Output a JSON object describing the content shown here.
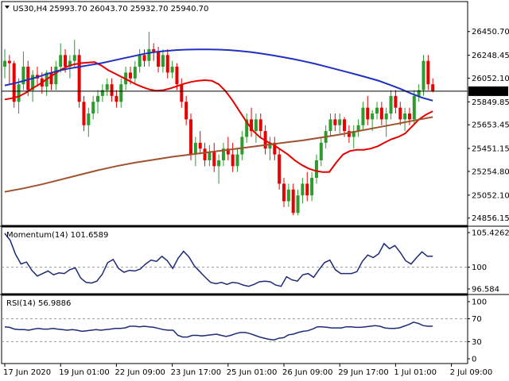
{
  "header": {
    "symbol": "US30,H4",
    "ohlc": "25993.70 26043.70 25932.70 25940.70"
  },
  "colors": {
    "bull": "#2e9b2e",
    "bear": "#e60000",
    "ma_fast": "#e60000",
    "ma_mid": "#2030c0",
    "ma_slow": "#a0522d",
    "indicator": "#1e2a78",
    "price_line": "#000000",
    "price_tag_bg": "#000000",
    "price_tag_text": "#ffffff"
  },
  "chart_data": [
    {
      "type": "candlestick",
      "title": "US30,H4",
      "ohlc_text": "25993.70 26043.70 25932.70 25940.70",
      "ylim": [
        24800,
        26700
      ],
      "y_ticks": [
        "26450.70",
        "26248.45",
        "26052.10",
        "25849.85",
        "25653.45",
        "25451.15",
        "25254.80",
        "25052.10",
        "24856.15"
      ],
      "current_price": "25940.70",
      "x_tick_labels": [
        "17 Jun 2020",
        "19 Jun 01:00",
        "22 Jun 09:00",
        "23 Jun 17:00",
        "25 Jun 01:00",
        "26 Jun 09:00",
        "29 Jun 17:00",
        "1 Jul 01:00",
        "2 Jul 09:00"
      ],
      "x_tick_bar_index": [
        0,
        12,
        24,
        36,
        48,
        60,
        72,
        84,
        96
      ],
      "candles": [
        [
          26150,
          26300,
          26050,
          26200
        ],
        [
          26200,
          26250,
          26000,
          26180
        ],
        [
          26180,
          26200,
          25800,
          25850
        ],
        [
          25850,
          26050,
          25750,
          26000
        ],
        [
          26000,
          26280,
          25950,
          26150
        ],
        [
          26150,
          26200,
          25900,
          25950
        ],
        [
          25950,
          26120,
          25850,
          26080
        ],
        [
          26080,
          26150,
          25980,
          26050
        ],
        [
          26050,
          26100,
          25920,
          25980
        ],
        [
          25980,
          26120,
          25900,
          26100
        ],
        [
          26100,
          26150,
          25950,
          26000
        ],
        [
          26000,
          26200,
          25950,
          26150
        ],
        [
          26150,
          26350,
          26100,
          26250
        ],
        [
          26250,
          26300,
          26100,
          26150
        ],
        [
          26150,
          26250,
          26050,
          26200
        ],
        [
          26200,
          26380,
          26150,
          26250
        ],
        [
          26250,
          26300,
          25800,
          25850
        ],
        [
          25850,
          25900,
          25600,
          25650
        ],
        [
          25650,
          25800,
          25550,
          25750
        ],
        [
          25750,
          25900,
          25700,
          25850
        ],
        [
          25850,
          25950,
          25750,
          25900
        ],
        [
          25900,
          26000,
          25850,
          25950
        ],
        [
          25950,
          26050,
          25900,
          26000
        ],
        [
          26000,
          26050,
          25850,
          25900
        ],
        [
          25900,
          25950,
          25800,
          25850
        ],
        [
          25850,
          26050,
          25800,
          26000
        ],
        [
          26000,
          26150,
          25950,
          26100
        ],
        [
          26100,
          26150,
          26000,
          26050
        ],
        [
          26050,
          26200,
          26000,
          26150
        ],
        [
          26150,
          26300,
          26100,
          26250
        ],
        [
          26250,
          26300,
          26150,
          26200
        ],
        [
          26200,
          26450,
          26150,
          26300
        ],
        [
          26300,
          26350,
          26200,
          26280
        ],
        [
          26280,
          26320,
          26100,
          26150
        ],
        [
          26150,
          26300,
          26100,
          26250
        ],
        [
          26250,
          26300,
          26050,
          26100
        ],
        [
          26100,
          26200,
          26050,
          26150
        ],
        [
          26150,
          26180,
          25950,
          26000
        ],
        [
          26000,
          26050,
          25800,
          25850
        ],
        [
          25850,
          25900,
          25650,
          25700
        ],
        [
          25700,
          25750,
          25350,
          25400
        ],
        [
          25400,
          25550,
          25300,
          25500
        ],
        [
          25500,
          25600,
          25400,
          25450
        ],
        [
          25450,
          25500,
          25300,
          25350
        ],
        [
          25350,
          25480,
          25300,
          25420
        ],
        [
          25420,
          25500,
          25250,
          25300
        ],
        [
          25300,
          25400,
          25150,
          25350
        ],
        [
          25350,
          25500,
          25300,
          25450
        ],
        [
          25450,
          25550,
          25350,
          25400
        ],
        [
          25400,
          25500,
          25250,
          25300
        ],
        [
          25300,
          25450,
          25250,
          25400
        ],
        [
          25400,
          25600,
          25350,
          25550
        ],
        [
          25550,
          25750,
          25500,
          25700
        ],
        [
          25700,
          25800,
          25550,
          25600
        ],
        [
          25600,
          25750,
          25500,
          25700
        ],
        [
          25700,
          25750,
          25550,
          25600
        ],
        [
          25600,
          25650,
          25400,
          25450
        ],
        [
          25450,
          25550,
          25350,
          25500
        ],
        [
          25500,
          25550,
          25350,
          25400
        ],
        [
          25400,
          25450,
          25100,
          25150
        ],
        [
          25150,
          25200,
          24950,
          25000
        ],
        [
          25000,
          25150,
          24950,
          25100
        ],
        [
          25100,
          25150,
          24880,
          24900
        ],
        [
          24900,
          25100,
          24880,
          25050
        ],
        [
          25050,
          25200,
          24980,
          25150
        ],
        [
          25150,
          25250,
          25000,
          25050
        ],
        [
          25050,
          25250,
          25000,
          25200
        ],
        [
          25200,
          25400,
          25150,
          25350
        ],
        [
          25350,
          25550,
          25300,
          25500
        ],
        [
          25500,
          25650,
          25450,
          25600
        ],
        [
          25600,
          25750,
          25550,
          25700
        ],
        [
          25700,
          25750,
          25600,
          25650
        ],
        [
          25650,
          25750,
          25580,
          25700
        ],
        [
          25700,
          25720,
          25550,
          25600
        ],
        [
          25600,
          25650,
          25500,
          25550
        ],
        [
          25550,
          25650,
          25450,
          25600
        ],
        [
          25600,
          25700,
          25550,
          25650
        ],
        [
          25650,
          25850,
          25600,
          25800
        ],
        [
          25800,
          25900,
          25650,
          25700
        ],
        [
          25700,
          25780,
          25600,
          25750
        ],
        [
          25750,
          25850,
          25700,
          25800
        ],
        [
          25800,
          25850,
          25650,
          25700
        ],
        [
          25700,
          25800,
          25550,
          25750
        ],
        [
          25750,
          25950,
          25700,
          25900
        ],
        [
          25900,
          25950,
          25750,
          25800
        ],
        [
          25800,
          25850,
          25650,
          25700
        ],
        [
          25700,
          25800,
          25600,
          25750
        ],
        [
          25750,
          25800,
          25650,
          25700
        ],
        [
          25700,
          25950,
          25650,
          25900
        ],
        [
          25900,
          26000,
          25850,
          25950
        ],
        [
          25950,
          26250,
          25900,
          26200
        ],
        [
          26200,
          26250,
          25950,
          26000
        ],
        [
          26000,
          26050,
          25930,
          25940
        ]
      ],
      "series": [
        {
          "values": [
            25870,
            25880,
            25895,
            25925,
            25965,
            26000,
            26040,
            26080,
            26120,
            26150,
            26170,
            26180,
            26185,
            26190,
            26160,
            26120,
            26090,
            26060,
            26030,
            26000,
            25975,
            25955,
            25945,
            25950,
            25965,
            25985,
            26005,
            26020,
            26030,
            26035,
            26030,
            26000,
            25940,
            25860,
            25770,
            25680,
            25600,
            25545,
            25510,
            25480,
            25440,
            25400,
            25350,
            25310,
            25280,
            25260,
            25250,
            25250,
            25330,
            25400,
            25430,
            25440,
            25440,
            25450,
            25470,
            25500,
            25530,
            25550,
            25580,
            25640,
            25700,
            25740,
            25770
          ]
        },
        {
          "values": [
            25990,
            26010,
            26035,
            26060,
            26090,
            26115,
            26135,
            26150,
            26165,
            26180,
            26200,
            26220,
            26240,
            26260,
            26275,
            26285,
            26292,
            26296,
            26298,
            26298,
            26296,
            26292,
            26285,
            26275,
            26262,
            26248,
            26232,
            26215,
            26196,
            26175,
            26152,
            26128,
            26104,
            26080,
            26055,
            26028,
            25995,
            25960,
            25920,
            25885,
            25860
          ]
        },
        {
          "values": [
            25080,
            25110,
            25145,
            25185,
            25225,
            25265,
            25300,
            25330,
            25355,
            25380,
            25400,
            25420,
            25440,
            25460,
            25480,
            25500,
            25520,
            25545,
            25570,
            25600,
            25630,
            25660,
            25690,
            25720
          ]
        }
      ]
    },
    {
      "type": "line",
      "title": "Momentum(14) 101.6589",
      "ylim": [
        96.584,
        105.4262
      ],
      "y_ticks": [
        "105.4262",
        "100",
        "96.584"
      ],
      "reference_level": 100,
      "values": [
        105.3,
        104.2,
        102.0,
        100.5,
        100.8,
        99.5,
        98.6,
        99.0,
        99.4,
        98.8,
        99.1,
        99.0,
        99.6,
        99.9,
        98.3,
        97.6,
        97.5,
        97.8,
        98.9,
        100.7,
        101.2,
        99.8,
        99.2,
        99.5,
        99.4,
        99.7,
        100.5,
        101.1,
        100.9,
        101.7,
        101.0,
        99.8,
        101.4,
        102.5,
        101.6,
        100.2,
        99.3,
        98.4,
        97.6,
        97.4,
        97.6,
        97.3,
        97.6,
        97.5,
        97.2,
        97.0,
        97.3,
        97.7,
        97.8,
        97.7,
        97.2,
        97.0,
        98.5,
        98.0,
        97.8,
        98.8,
        99.0,
        98.4,
        99.6,
        100.7,
        101.1,
        99.6,
        99.0,
        99.0,
        99.0,
        99.3,
        100.9,
        101.9,
        101.5,
        102.1,
        103.7,
        102.9,
        103.4,
        102.3,
        101.0,
        100.5,
        101.5,
        102.4,
        101.7,
        101.7
      ]
    },
    {
      "type": "line",
      "title": "RSI(14) 56.9886",
      "ylim": [
        0,
        100
      ],
      "y_ticks": [
        "100",
        "70",
        "30",
        "0"
      ],
      "levels": [
        70,
        30
      ],
      "values": [
        56,
        55,
        52,
        51,
        51,
        50,
        52,
        53,
        52,
        52,
        53,
        52,
        51,
        50,
        51,
        50,
        48,
        49,
        50,
        51,
        50,
        51,
        52,
        53,
        53,
        54,
        57,
        57,
        56,
        57,
        56,
        55,
        53,
        51,
        50,
        50,
        41,
        38,
        38,
        41,
        41,
        40,
        41,
        42,
        43,
        41,
        39,
        41,
        44,
        46,
        46,
        44,
        41,
        38,
        36,
        34,
        33,
        36,
        37,
        42,
        43,
        46,
        48,
        49,
        52,
        56,
        56,
        55,
        54,
        54,
        54,
        56,
        56,
        55,
        55,
        56,
        57,
        58,
        57,
        54,
        53,
        53,
        54,
        57,
        60,
        64,
        62,
        58,
        57,
        57
      ]
    }
  ]
}
